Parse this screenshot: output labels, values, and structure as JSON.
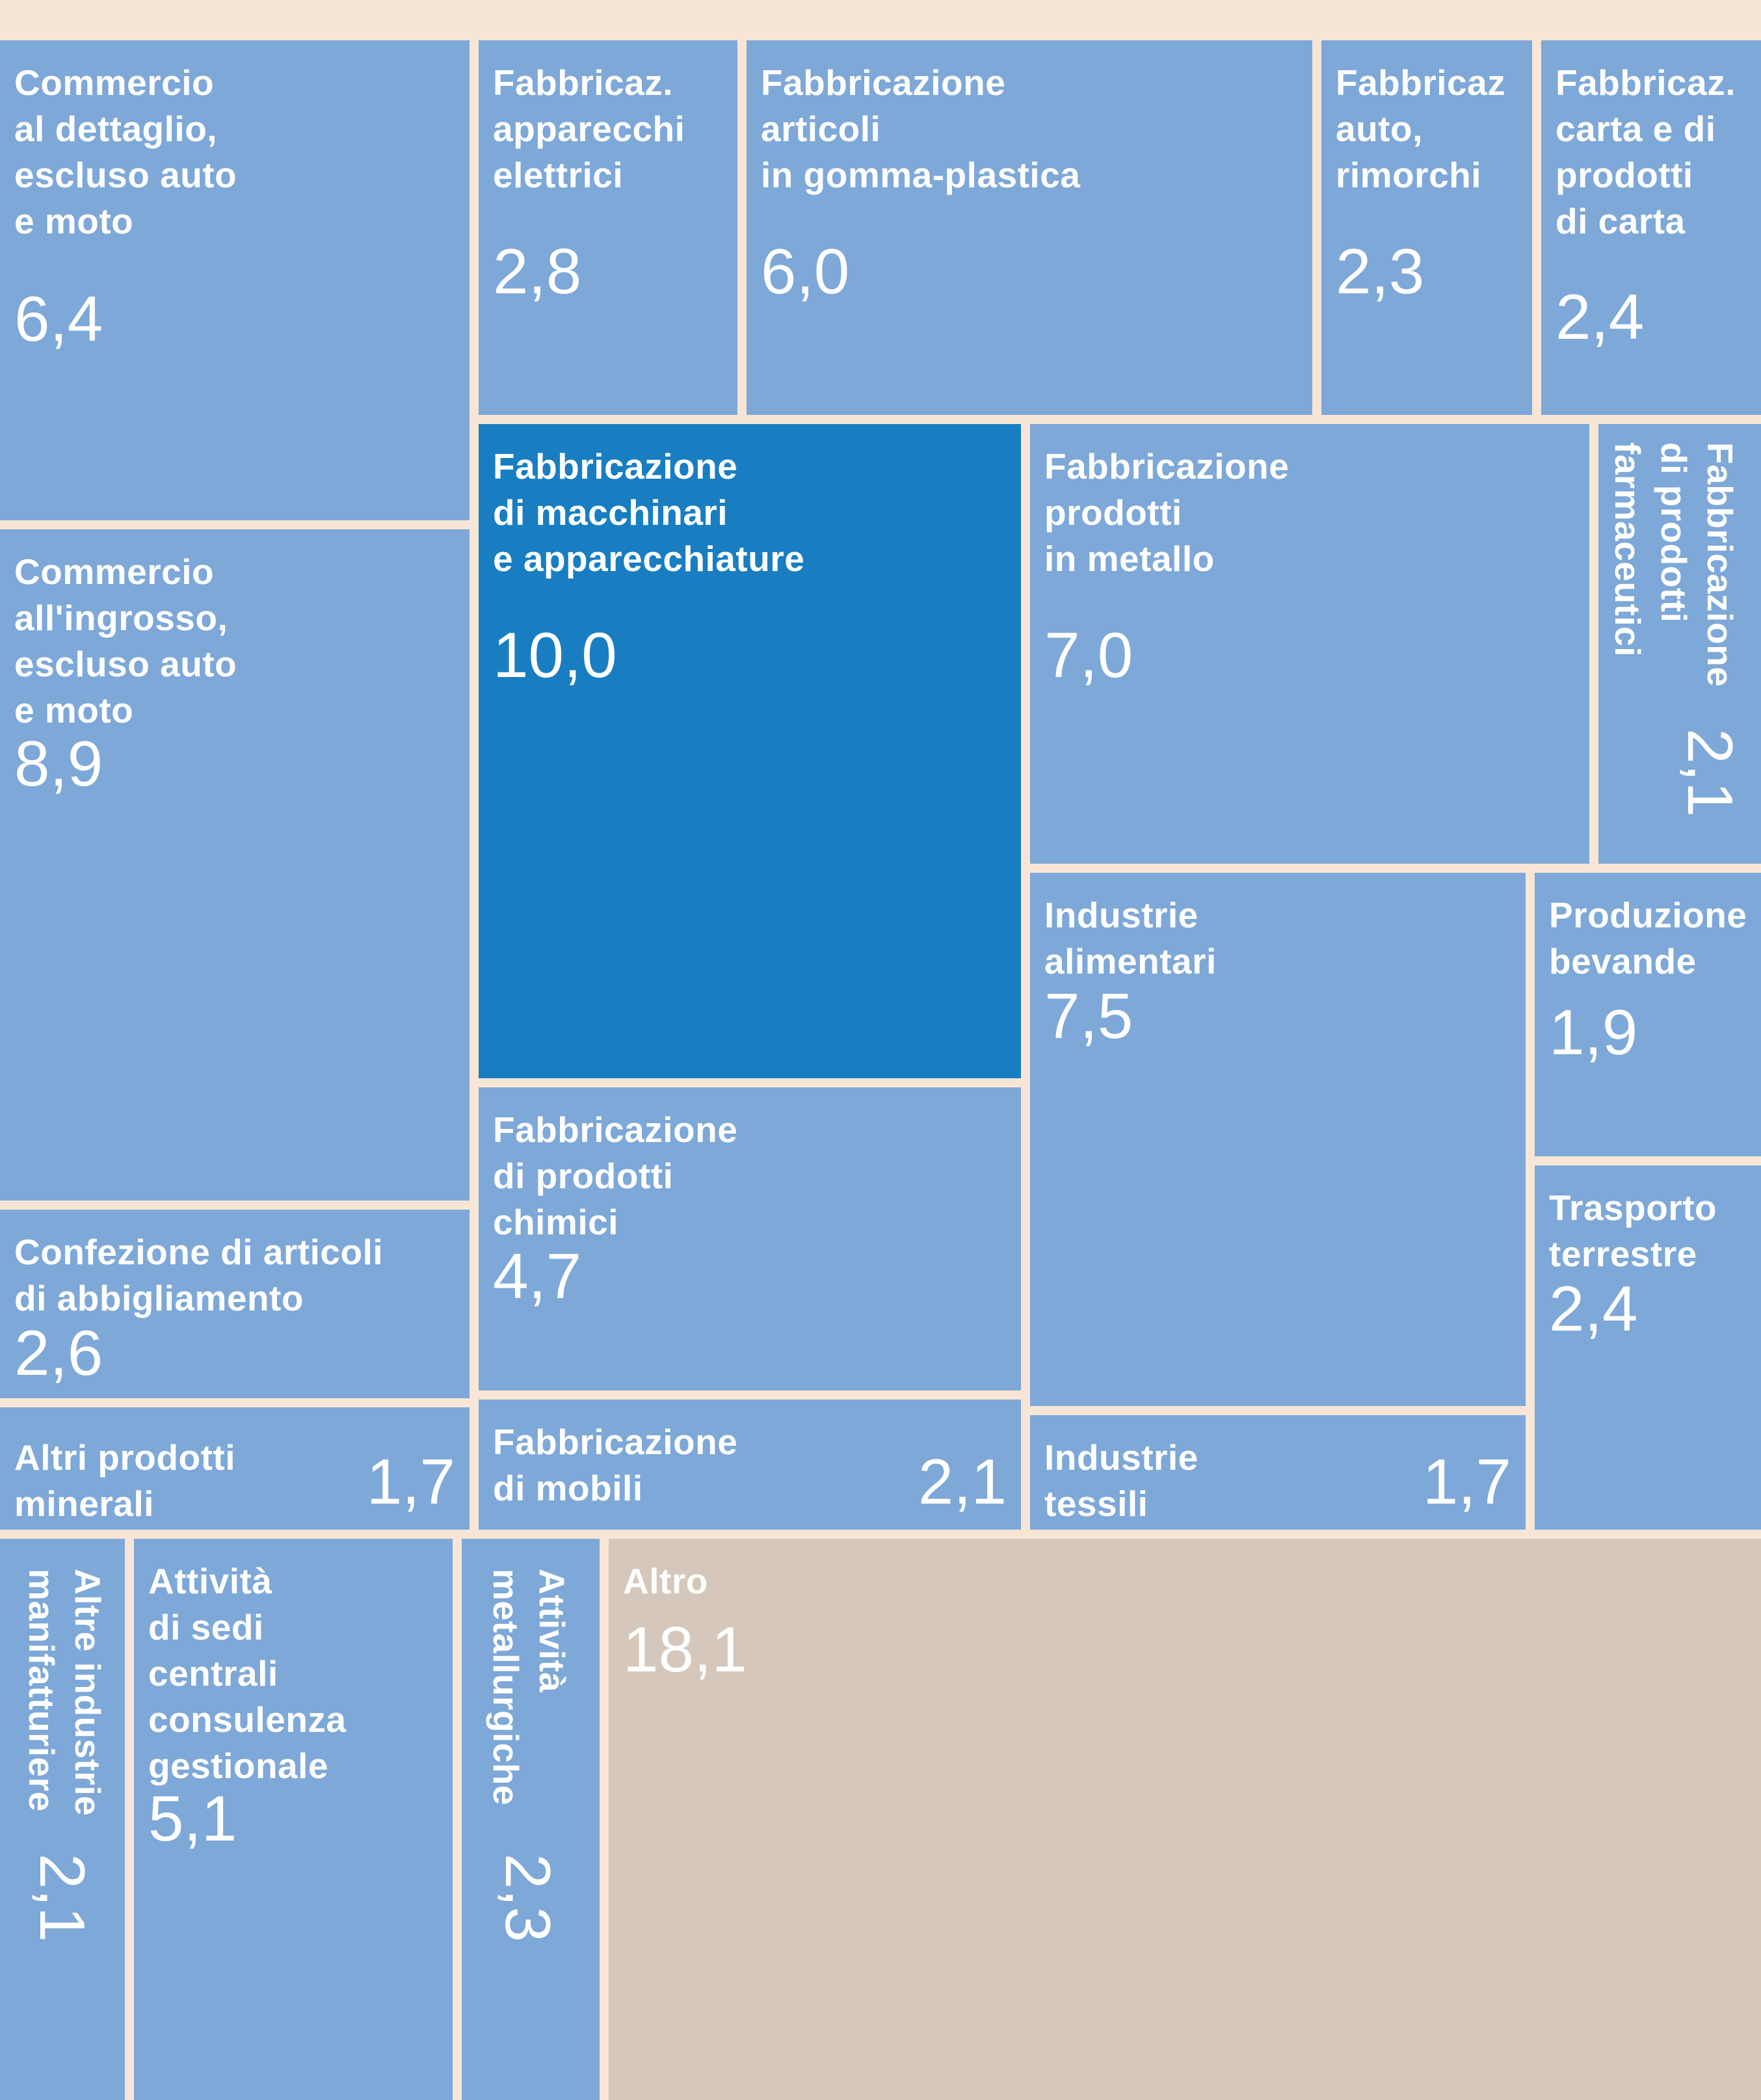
{
  "chart_data": {
    "type": "treemap",
    "unit": "",
    "items": [
      {
        "label": "Commercio\nal dettaglio,\nescluso auto\ne moto",
        "value": "6,4"
      },
      {
        "label": "Fabbricaz.\napparecchi\nelettrici",
        "value": "2,8"
      },
      {
        "label": "Fabbricazione\narticoli\nin gomma-plastica",
        "value": "6,0"
      },
      {
        "label": "Fabbricaz\nauto,\nrimorchi",
        "value": "2,3"
      },
      {
        "label": "Fabbricaz.\ncarta e di\nprodotti\ndi carta",
        "value": "2,4"
      },
      {
        "label": "Fabbricazione\ndi macchinari\ne apparecchiature",
        "value": "10,0"
      },
      {
        "label": "Fabbricazione\nprodotti\nin metallo",
        "value": "7,0"
      },
      {
        "label": "Fabbricazione\ndi prodotti\nfarmaceutici",
        "value": "2,1"
      },
      {
        "label": "Commercio\nall'ingrosso,\nescluso auto\ne moto",
        "value": "8,9"
      },
      {
        "label": "Industrie\nalimentari",
        "value": "7,5"
      },
      {
        "label": "Produzione\nbevande",
        "value": "1,9"
      },
      {
        "label": "Fabbricazione\ndi prodotti\nchimici",
        "value": "4,7"
      },
      {
        "label": "Trasporto\nterrestre",
        "value": "2,4"
      },
      {
        "label": "Confezione di articoli\ndi abbigliamento",
        "value": "2,6"
      },
      {
        "label": "Altri prodotti\nminerali",
        "value": "1,7"
      },
      {
        "label": "Fabbricazione\ndi mobili",
        "value": "2,1"
      },
      {
        "label": "Industrie\ntessili",
        "value": "1,7"
      },
      {
        "label": "Altre industrie\nmanifatturiere",
        "value": "2,1"
      },
      {
        "label": "Attività\ndi sedi\ncentrali\nconsulenza\ngestionale",
        "value": "5,1"
      },
      {
        "label": "Attività\nmetallurgiche",
        "value": "2,3"
      },
      {
        "label": "Altro",
        "value": "18,1"
      }
    ]
  },
  "colors": {
    "background": "#f7e6d6",
    "tile": "#7da8d8",
    "highlight": "#187ec1",
    "other": "#d5c7bb",
    "text": "#ffffff"
  }
}
